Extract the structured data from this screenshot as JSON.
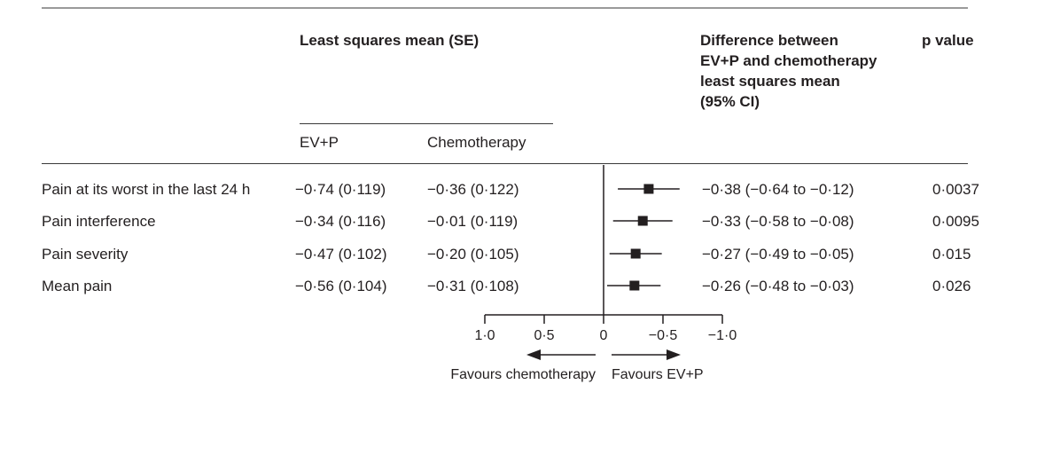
{
  "headers": {
    "lsmean": "Least squares mean (SE)",
    "difference": [
      "Difference between",
      "EV+P and chemotherapy",
      "least squares mean",
      "(95% CI)"
    ],
    "pvalue": "p value",
    "evp": "EV+P",
    "chemo": "Chemotherapy"
  },
  "axis": {
    "ticks": [
      {
        "value": 1.0,
        "label": "1·0"
      },
      {
        "value": 0.5,
        "label": "0·5"
      },
      {
        "value": 0,
        "label": "0"
      },
      {
        "value": -0.5,
        "label": "−0·5"
      },
      {
        "value": -1.0,
        "label": "−1·0"
      }
    ],
    "favours_left": "Favours chemotherapy",
    "favours_right": "Favours EV+P"
  },
  "chart_data": {
    "type": "forest",
    "xlim": [
      1.0,
      -1.0
    ],
    "reference_line": 0,
    "rows": [
      {
        "label": "Pain at its worst in the last 24 h",
        "evp": "−0·74 (0·119)",
        "chemo": "−0·36 (0·122)",
        "diff_text": "−0·38 (−0·64 to −0·12)",
        "p": "0·0037",
        "estimate": -0.38,
        "ci": [
          -0.64,
          -0.12
        ]
      },
      {
        "label": "Pain interference",
        "evp": "−0·34 (0·116)",
        "chemo": "−0·01 (0·119)",
        "diff_text": "−0·33 (−0·58 to −0·08)",
        "p": "0·0095",
        "estimate": -0.33,
        "ci": [
          -0.58,
          -0.08
        ]
      },
      {
        "label": "Pain severity",
        "evp": "−0·47 (0·102)",
        "chemo": "−0·20 (0·105)",
        "diff_text": "−0·27 (−0·49 to −0·05)",
        "p": "0·015",
        "estimate": -0.27,
        "ci": [
          -0.49,
          -0.05
        ]
      },
      {
        "label": "Mean pain",
        "evp": "−0·56 (0·104)",
        "chemo": "−0·31 (0·108)",
        "diff_text": "−0·26 (−0·48 to −0·03)",
        "p": "0·026",
        "estimate": -0.26,
        "ci": [
          -0.48,
          -0.03
        ]
      }
    ]
  }
}
